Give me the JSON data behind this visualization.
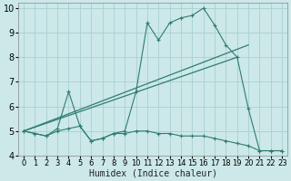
{
  "xlabel": "Humidex (Indice chaleur)",
  "bg_color": "#cce8e8",
  "line_color": "#2e7d6e",
  "xlim": [
    -0.5,
    23.5
  ],
  "ylim": [
    4,
    10.2
  ],
  "yticks": [
    4,
    5,
    6,
    7,
    8,
    9,
    10
  ],
  "xticks": [
    0,
    1,
    2,
    3,
    4,
    5,
    6,
    7,
    8,
    9,
    10,
    11,
    12,
    13,
    14,
    15,
    16,
    17,
    18,
    19,
    20,
    21,
    22,
    23
  ],
  "series_main": [
    5.0,
    4.9,
    4.8,
    5.1,
    6.6,
    5.2,
    4.6,
    4.7,
    4.9,
    5.0,
    6.6,
    9.4,
    8.7,
    9.4,
    9.6,
    9.7,
    10.0,
    9.3,
    8.5,
    8.0,
    5.9,
    4.2,
    4.2,
    4.2
  ],
  "series_low": [
    5.0,
    4.9,
    4.8,
    5.0,
    5.1,
    5.2,
    4.6,
    4.7,
    4.9,
    4.9,
    5.0,
    5.0,
    4.9,
    4.9,
    4.8,
    4.8,
    4.8,
    4.7,
    4.6,
    4.5,
    4.4,
    4.2,
    4.2,
    4.2
  ],
  "trend1_x": [
    0,
    20
  ],
  "trend1_y": [
    5.0,
    8.5
  ],
  "trend2_x": [
    0,
    19
  ],
  "trend2_y": [
    5.0,
    8.0
  ],
  "grid_color": "#aad0d0",
  "tick_fontsize": 6,
  "label_fontsize": 7
}
